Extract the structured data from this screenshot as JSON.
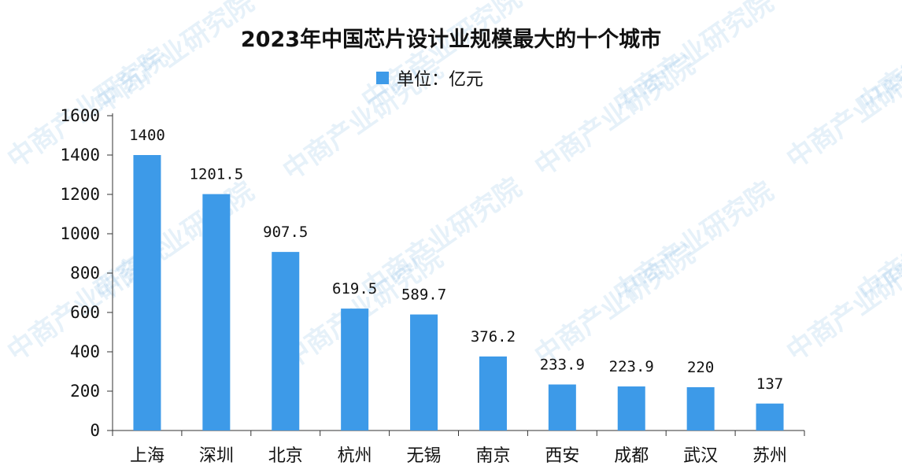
{
  "watermark_text": "中商产业研究院",
  "chart_data": {
    "type": "bar",
    "title": "2023年中国芯片设计业规模最大的十个城市",
    "legend": "单位：亿元",
    "legend_position": "top",
    "categories": [
      "上海",
      "深圳",
      "北京",
      "杭州",
      "无锡",
      "南京",
      "西安",
      "成都",
      "武汉",
      "苏州"
    ],
    "values": [
      1400,
      1201.5,
      907.5,
      619.5,
      589.7,
      376.2,
      233.9,
      223.9,
      220,
      137
    ],
    "value_labels": [
      "1400",
      "1201.5",
      "907.5",
      "619.5",
      "589.7",
      "376.2",
      "233.9",
      "223.9",
      "220",
      "137"
    ],
    "ylim": [
      0,
      1600
    ],
    "yticks": [
      "0",
      "200",
      "400",
      "600",
      "800",
      "1000",
      "1200",
      "1400",
      "1600"
    ],
    "grid": false,
    "bar_color": "#3d9ae8",
    "xlabel": "",
    "ylabel": ""
  }
}
